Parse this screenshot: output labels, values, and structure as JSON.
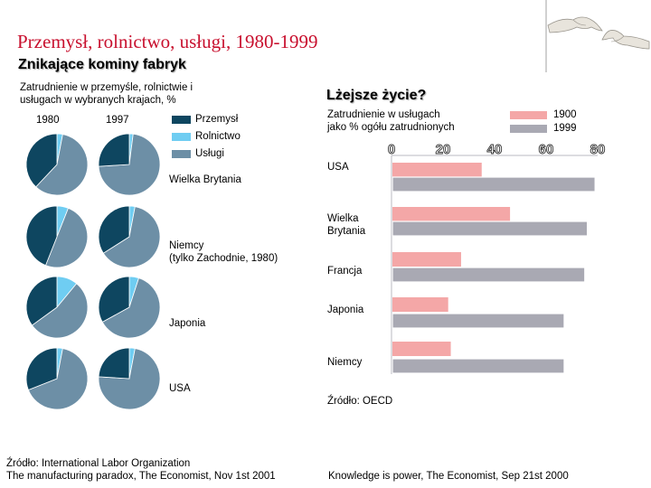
{
  "slide": {
    "title": "Przemysł, rolnictwo, usługi, 1980-1999",
    "subtitle": "Znikające kominy fabryk"
  },
  "left_panel": {
    "caption": "Zatrudnienie w przemyśle, rolnictwie i usługach w wybranych krajach, %",
    "caption_line1": "Zatrudnienie w przemyśle, rolnictwie i",
    "caption_line2": "usługach w wybranych krajach, %",
    "year_labels": [
      "1980",
      "1997"
    ],
    "legend": [
      {
        "label": "Przemysł",
        "color": "#0e4660"
      },
      {
        "label": "Rolnictwo",
        "color": "#6fcdf2"
      },
      {
        "label": "Usługi",
        "color": "#6d8fa6"
      }
    ],
    "countries": [
      "Wielka Brytania",
      "Niemcy (tylko Zachodnie, 1980)",
      "Japonia",
      "USA"
    ],
    "country_label_lines": [
      [
        "Wielka Brytania"
      ],
      [
        "Niemcy",
        "(tylko Zachodnie, 1980)"
      ],
      [
        "Japonia"
      ],
      [
        "USA"
      ]
    ],
    "source_line1": "Źródło: International Labor Organization",
    "source_line2": "The manufacturing paradox, The Economist, Nov 1st 2001"
  },
  "right_panel": {
    "heading": "Lżejsze życie?",
    "caption_line1": "Zatrudnienie w usługach",
    "caption_line2": "jako % ogółu zatrudnionych",
    "legend_years": [
      "1900",
      "1999"
    ],
    "source": "Źródło: OECD",
    "footer": "Knowledge is power, The Economist, Sep 21st 2000"
  },
  "chart_data": [
    {
      "type": "pie",
      "title": "Zatrudnienie w przemyśle, rolnictwie i usługach w wybranych krajach, %",
      "categories": [
        "Przemysł",
        "Rolnictwo",
        "Usługi"
      ],
      "colors": [
        "#0e4660",
        "#6fcdf2",
        "#6d8fa6"
      ],
      "series": [
        {
          "name": "Wielka Brytania 1980",
          "values": [
            38,
            3,
            59
          ]
        },
        {
          "name": "Wielka Brytania 1997",
          "values": [
            26,
            2,
            72
          ]
        },
        {
          "name": "Niemcy 1980",
          "values": [
            44,
            6,
            50
          ]
        },
        {
          "name": "Niemcy 1997",
          "values": [
            34,
            3,
            63
          ]
        },
        {
          "name": "Japonia 1980",
          "values": [
            35,
            11,
            54
          ]
        },
        {
          "name": "Japonia 1997",
          "values": [
            33,
            5,
            62
          ]
        },
        {
          "name": "USA 1980",
          "values": [
            31,
            3,
            66
          ]
        },
        {
          "name": "USA 1997",
          "values": [
            24,
            3,
            73
          ]
        }
      ]
    },
    {
      "type": "bar",
      "orientation": "horizontal",
      "title": "Lżejsze życie?",
      "subtitle": "Zatrudnienie w usługach jako % ogółu zatrudnionych",
      "categories": [
        "USA",
        "Wielka Brytania",
        "Francja",
        "Japonia",
        "Niemcy"
      ],
      "category_lines": [
        [
          "USA"
        ],
        [
          "Wielka",
          "Brytania"
        ],
        [
          "Francja"
        ],
        [
          "Japonia"
        ],
        [
          "Niemcy"
        ]
      ],
      "series": [
        {
          "name": "1900",
          "color": "#f4a7a7",
          "values": [
            35,
            46,
            27,
            22,
            23
          ]
        },
        {
          "name": "1999",
          "color": "#a9a9b3",
          "values": [
            79,
            76,
            75,
            67,
            67
          ]
        }
      ],
      "xlim": [
        0,
        80
      ],
      "ticks": [
        "0",
        "20",
        "40",
        "60",
        "80"
      ],
      "tick_values": [
        0,
        20,
        40,
        60,
        80
      ]
    }
  ]
}
